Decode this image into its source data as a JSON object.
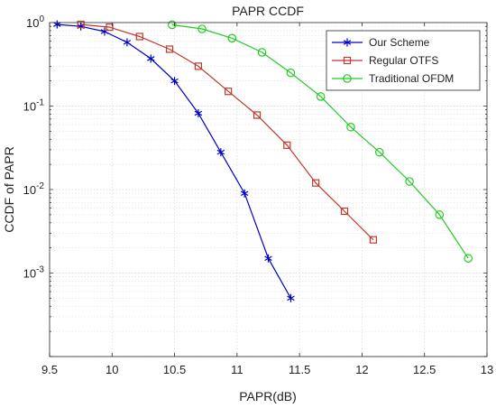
{
  "chart_data": {
    "type": "line",
    "title": "PAPR CCDF",
    "xlabel": "PAPR(dB)",
    "ylabel": "CCDF of PAPR",
    "xlim": [
      9.5,
      13
    ],
    "ylim": [
      0.0001,
      1
    ],
    "yscale": "log",
    "grid": true,
    "minor_grid": true,
    "legend_position": "top-right",
    "x_ticks": [
      "9.5",
      "10",
      "10.5",
      "11",
      "11.5",
      "12",
      "12.5",
      "13"
    ],
    "x_tick_values": [
      9.5,
      10,
      10.5,
      11,
      11.5,
      12,
      12.5,
      13
    ],
    "y_ticks": [
      "10^0",
      "10^-1",
      "10^-2",
      "10^-3"
    ],
    "y_tick_values": [
      1,
      0.1,
      0.01,
      0.001
    ],
    "series": [
      {
        "name": "Our Scheme",
        "color": "#0000cc",
        "marker": "asterisk",
        "x": [
          9.56,
          9.75,
          9.94,
          10.12,
          10.31,
          10.5,
          10.69,
          10.87,
          11.06,
          11.25,
          11.43
        ],
        "y": [
          0.95,
          0.9,
          0.78,
          0.58,
          0.37,
          0.2,
          0.082,
          0.028,
          0.009,
          0.0015,
          0.0005
        ]
      },
      {
        "name": "Regular OTFS",
        "color": "#c0392b",
        "marker": "square",
        "x": [
          9.75,
          9.98,
          10.22,
          10.46,
          10.69,
          10.93,
          11.16,
          11.4,
          11.63,
          11.86,
          12.09
        ],
        "y": [
          0.95,
          0.88,
          0.68,
          0.48,
          0.3,
          0.15,
          0.078,
          0.034,
          0.012,
          0.0055,
          0.0025
        ]
      },
      {
        "name": "Traditional OFDM",
        "color": "#22cc22",
        "marker": "circle",
        "x": [
          10.48,
          10.72,
          10.96,
          11.2,
          11.43,
          11.67,
          11.91,
          12.14,
          12.38,
          12.62,
          12.85
        ],
        "y": [
          0.94,
          0.84,
          0.65,
          0.44,
          0.25,
          0.13,
          0.056,
          0.028,
          0.0125,
          0.005,
          0.0015
        ]
      }
    ]
  }
}
